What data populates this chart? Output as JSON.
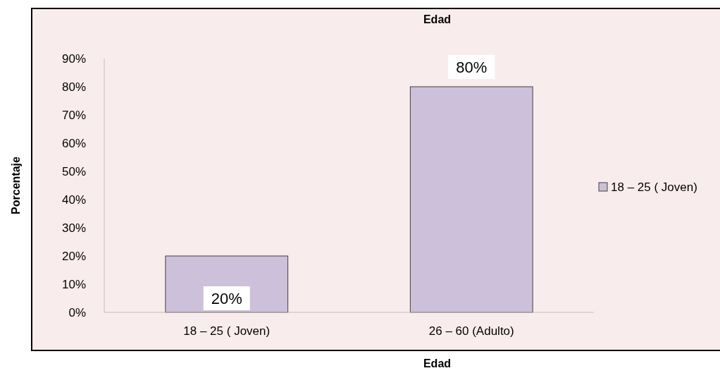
{
  "chart_data": {
    "type": "bar",
    "title": "Edad",
    "xlabel": "Edad",
    "ylabel": "Porcentaje",
    "categories": [
      "18 – 25 ( Joven)",
      "26 – 60 (Adulto)"
    ],
    "series": [
      {
        "name": "18 – 25 ( Joven)",
        "color": "#ccc0da",
        "values": [
          20,
          80
        ],
        "value_labels": [
          "20%",
          "80%"
        ]
      }
    ],
    "ylim": [
      0,
      90
    ],
    "yticks": [
      {
        "value": 0,
        "label": "0%"
      },
      {
        "value": 10,
        "label": "10%"
      },
      {
        "value": 20,
        "label": "20%"
      },
      {
        "value": 30,
        "label": "30%"
      },
      {
        "value": 40,
        "label": "40%"
      },
      {
        "value": 50,
        "label": "50%"
      },
      {
        "value": 60,
        "label": "60%"
      },
      {
        "value": 70,
        "label": "70%"
      },
      {
        "value": 80,
        "label": "80%"
      },
      {
        "value": 90,
        "label": "90%"
      }
    ],
    "grid": false,
    "legend": "right"
  }
}
